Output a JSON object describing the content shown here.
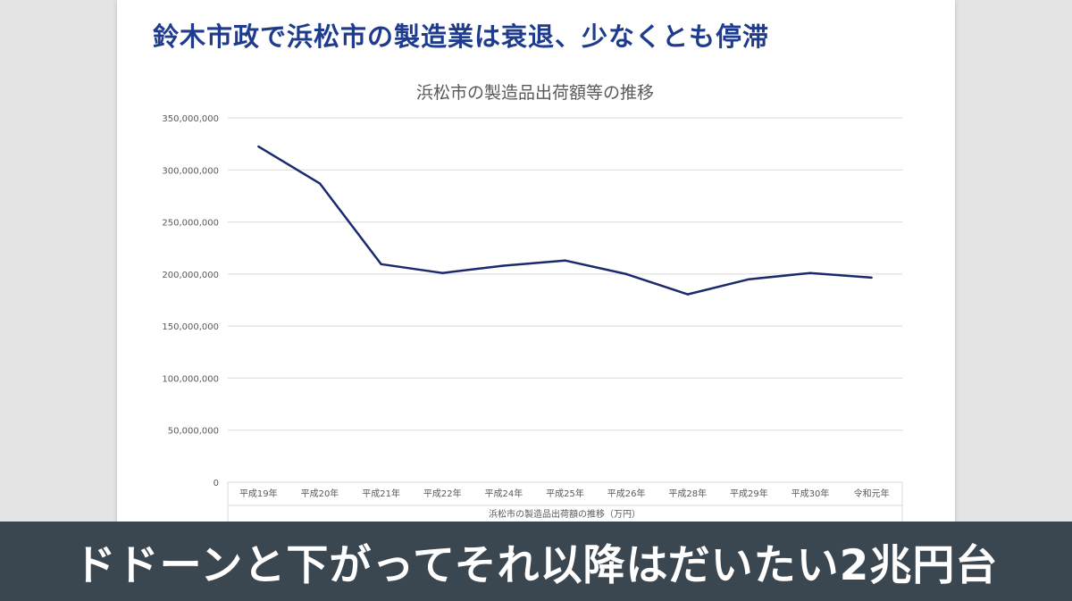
{
  "slide": {
    "title": "鈴木市政で浜松市の製造業は衰退、少なくとも停滞"
  },
  "caption": {
    "text": "ドドーンと下がってそれ以降はだいたい2兆円台"
  },
  "colors": {
    "line": "#1a2a6c",
    "title": "#1f3c8c",
    "grid": "#d9d9d9",
    "caption_bg": "#3b4750"
  },
  "chart_data": {
    "type": "line",
    "title": "浜松市の製造品出荷額等の推移",
    "categories": [
      "平成19年",
      "平成20年",
      "平成21年",
      "平成22年",
      "平成24年",
      "平成25年",
      "平成26年",
      "平成28年",
      "平成29年",
      "平成30年",
      "令和元年"
    ],
    "series": [
      {
        "name": "浜松市の製造品出荷額の推移（万円）",
        "values": [
          322500000,
          287000000,
          209500000,
          201000000,
          208000000,
          213000000,
          200000000,
          180500000,
          195000000,
          201000000,
          196500000
        ]
      }
    ],
    "y_ticks": [
      "0",
      "50,000,000",
      "100,000,000",
      "150,000,000",
      "200,000,000",
      "250,000,000",
      "300,000,000",
      "350,000,000"
    ],
    "ylim": [
      0,
      350000000
    ],
    "grid": true,
    "legend": "bottom"
  }
}
